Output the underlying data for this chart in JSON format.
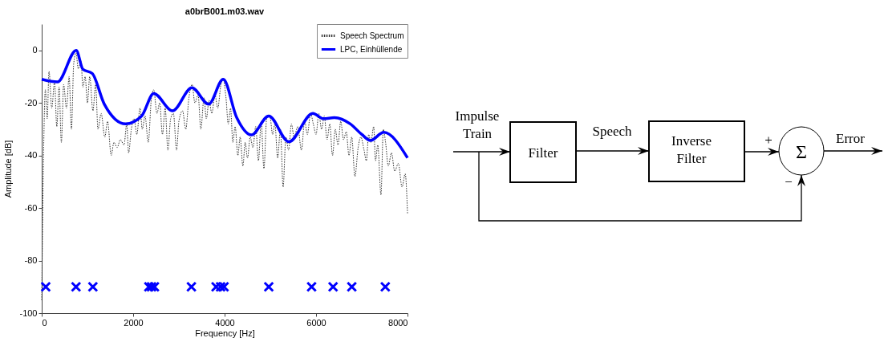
{
  "chart_data": [
    {
      "type": "line",
      "title": "a0brB001.m03.wav",
      "xlabel": "Frequency [Hz]",
      "ylabel": "Amplitude [dB]",
      "xlim": [
        0,
        8000
      ],
      "ylim": [
        -100,
        10
      ],
      "xticks": [
        0,
        2000,
        4000,
        6000,
        8000
      ],
      "yticks": [
        -100,
        -80,
        -60,
        -40,
        -20,
        0
      ],
      "grid": false,
      "legend": "top right",
      "series": [
        {
          "name": "Speech Spectrum",
          "color": "#333333",
          "line_style": "dotted",
          "x": [
            0,
            40,
            80,
            120,
            160,
            220,
            280,
            330,
            380,
            430,
            480,
            540,
            600,
            650,
            700,
            750,
            800,
            860,
            900,
            950,
            1000,
            1050,
            1120,
            1180,
            1230,
            1300,
            1380,
            1440,
            1520,
            1580,
            1650,
            1720,
            1800,
            1860,
            1900,
            1960,
            2020,
            2080,
            2150,
            2200,
            2260,
            2330,
            2400,
            2450,
            2520,
            2580,
            2640,
            2700,
            2760,
            2820,
            2880,
            2950,
            3000,
            3080,
            3150,
            3220,
            3290,
            3350,
            3420,
            3480,
            3550,
            3600,
            3660,
            3720,
            3790,
            3850,
            3920,
            3970,
            4030,
            4080,
            4130,
            4180,
            4230,
            4290,
            4340,
            4400,
            4450,
            4500,
            4560,
            4620,
            4680,
            4740,
            4800,
            4860,
            4920,
            4990,
            5050,
            5100,
            5160,
            5220,
            5280,
            5340,
            5400,
            5460,
            5520,
            5600,
            5680,
            5750,
            5810,
            5880,
            5940,
            6000,
            6060,
            6120,
            6180,
            6240,
            6300,
            6360,
            6420,
            6480,
            6540,
            6600,
            6660,
            6720,
            6780,
            6850,
            6920,
            6980,
            7050,
            7100,
            7150,
            7200,
            7260,
            7300,
            7350,
            7420,
            7470,
            7520,
            7580,
            7650,
            7720,
            7800,
            7880,
            7950,
            8000
          ],
          "values": [
            -95,
            -40,
            -15,
            -26,
            -8,
            -22,
            -12,
            -29,
            -14,
            -35,
            -13,
            -22,
            -10,
            -30,
            -5,
            -1,
            -7,
            -4,
            -14,
            -10,
            -20,
            -10,
            -23,
            -13,
            -30,
            -24,
            -33,
            -27,
            -40,
            -35,
            -37,
            -34,
            -36,
            -28,
            -39,
            -30,
            -26,
            -32,
            -22,
            -30,
            -25,
            -35,
            -18,
            -15,
            -24,
            -20,
            -32,
            -22,
            -38,
            -26,
            -24,
            -38,
            -27,
            -23,
            -30,
            -18,
            -13,
            -20,
            -17,
            -30,
            -18,
            -26,
            -19,
            -24,
            -17,
            -22,
            -13,
            -11,
            -18,
            -28,
            -22,
            -35,
            -29,
            -40,
            -33,
            -44,
            -35,
            -41,
            -33,
            -37,
            -29,
            -42,
            -27,
            -45,
            -26,
            -25,
            -32,
            -28,
            -41,
            -30,
            -52,
            -33,
            -38,
            -28,
            -33,
            -29,
            -38,
            -27,
            -32,
            -24,
            -28,
            -32,
            -24,
            -30,
            -25,
            -34,
            -28,
            -40,
            -30,
            -36,
            -27,
            -34,
            -31,
            -40,
            -33,
            -48,
            -37,
            -33,
            -38,
            -42,
            -32,
            -35,
            -29,
            -42,
            -36,
            -55,
            -30,
            -35,
            -44,
            -39,
            -46,
            -43,
            -52,
            -47,
            -62
          ]
        },
        {
          "name": "LPC, Einhüllende",
          "color": "#0000ff",
          "line_style": "solid",
          "x": [
            0,
            345,
            755,
            900,
            1105,
            1370,
            1835,
            2185,
            2450,
            2860,
            3285,
            3650,
            3970,
            4265,
            4585,
            4965,
            5405,
            5930,
            6165,
            6400,
            6750,
            7000,
            7190,
            7480,
            8000
          ],
          "values": [
            -11,
            -12,
            0,
            -7.2,
            -8.8,
            -20.5,
            -28,
            -25,
            -16.4,
            -23,
            -14.2,
            -20.5,
            -11,
            -25.6,
            -32.2,
            -25,
            -34.8,
            -24,
            -26,
            -25.6,
            -28,
            -32,
            -34.3,
            -31.2,
            -40.9
          ]
        },
        {
          "type": "scatter",
          "marker": "cross",
          "color": "#0000ff",
          "x": [
            88,
            750,
            1119,
            2343,
            2401,
            2466,
            3274,
            3813,
            3912,
            3988,
            4966,
            5903,
            6372,
            6782,
            7514
          ],
          "values": [
            -90,
            -90,
            -90,
            -90,
            -90,
            -90,
            -90,
            -90,
            -90,
            -90,
            -90,
            -90,
            -90,
            -90,
            -90
          ]
        }
      ]
    },
    {
      "type": "other",
      "annotations": [
        "Impulse Train",
        "Filter",
        "Speech",
        "Inverse Filter",
        "+",
        "−",
        "Σ",
        "Error"
      ]
    }
  ]
}
